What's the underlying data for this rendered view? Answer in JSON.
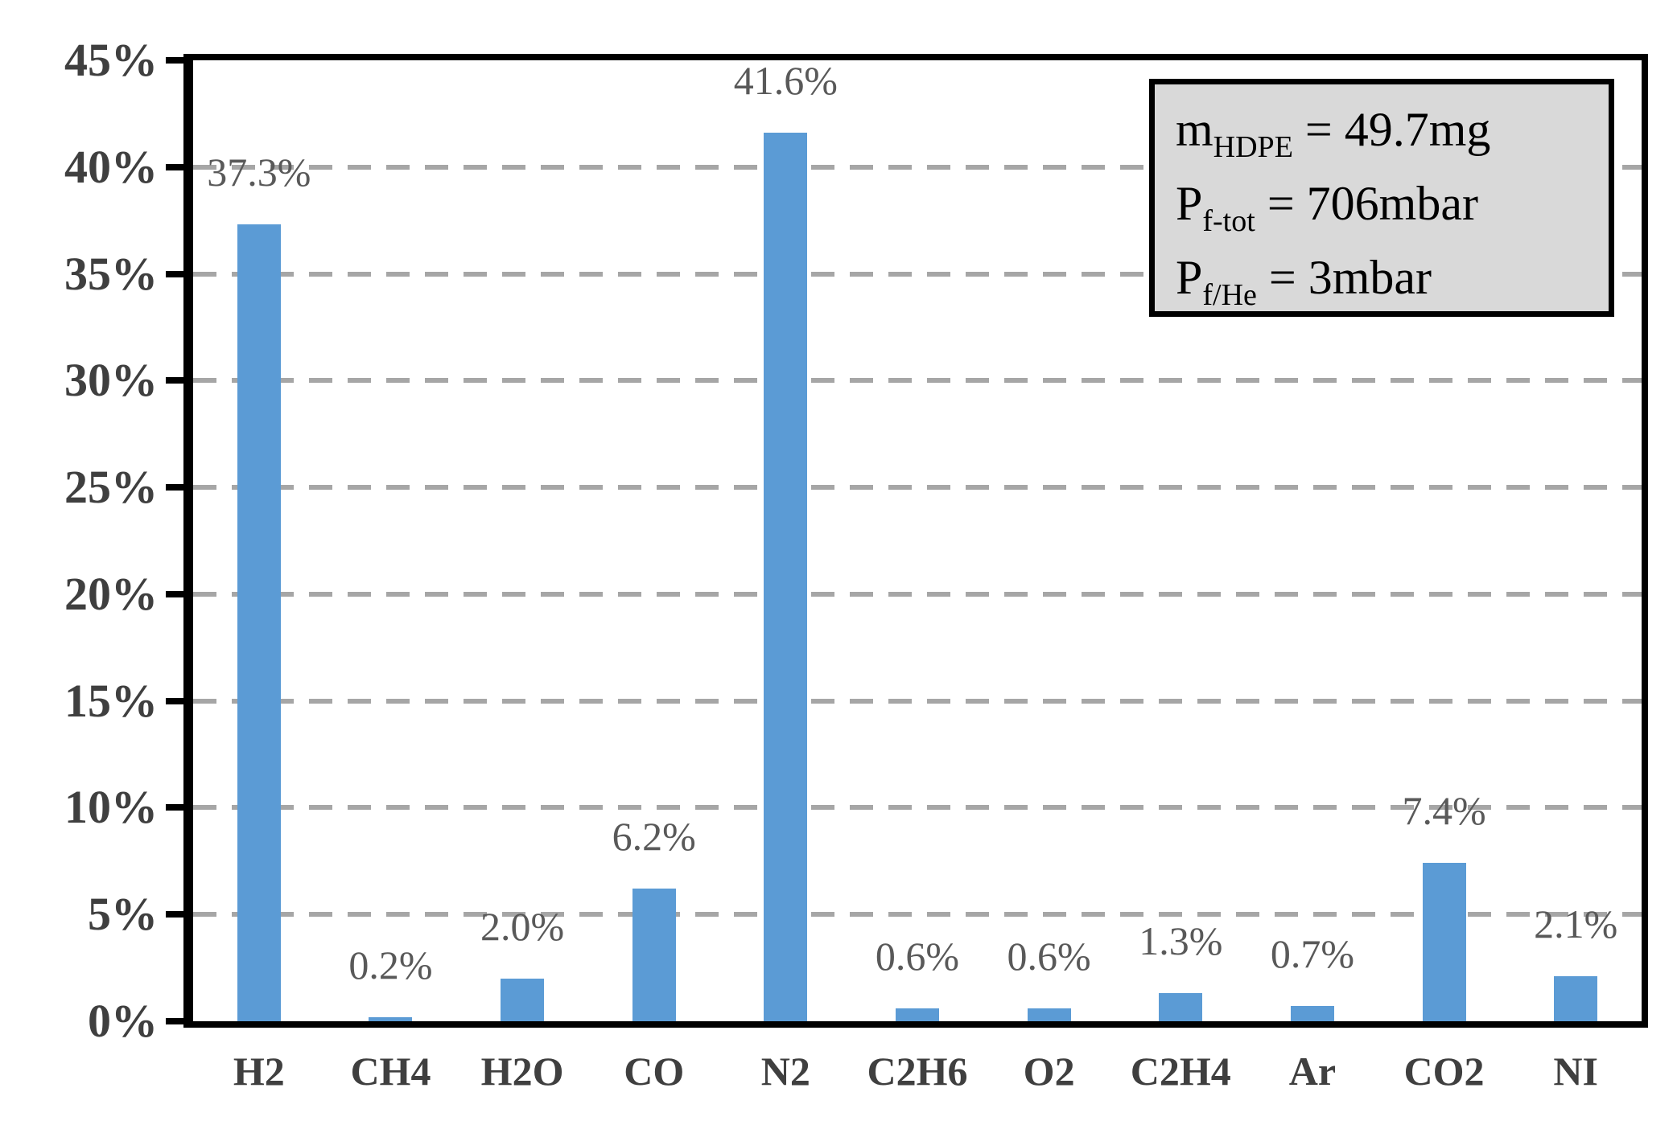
{
  "chart_data": {
    "type": "bar",
    "title": "",
    "xlabel": "",
    "ylabel": "",
    "categories": [
      "H2",
      "CH4",
      "H2O",
      "CO",
      "N2",
      "C2H6",
      "O2",
      "C2H4",
      "Ar",
      "CO2",
      "NI"
    ],
    "values": [
      37.3,
      0.2,
      2.0,
      6.2,
      41.6,
      0.6,
      0.6,
      1.3,
      0.7,
      7.4,
      2.1
    ],
    "data_labels": [
      "37.3%",
      "0.2%",
      "2.0%",
      "6.2%",
      "41.6%",
      "0.6%",
      "0.6%",
      "1.3%",
      "0.7%",
      "7.4%",
      "2.1%"
    ],
    "ylim": [
      0,
      45
    ],
    "ytick_step": 5,
    "ytick_labels": [
      "0%",
      "5%",
      "10%",
      "15%",
      "20%",
      "25%",
      "30%",
      "35%",
      "40%",
      "45%"
    ],
    "grid": "horizontal dashed lines every 5%, 45% line is solid top border",
    "legend_position": "none",
    "bar_color": "#5b9bd5",
    "gridline_color": "#a6a6a6",
    "axis_color": "#000000",
    "axis_label_color": "#3f3f3f",
    "data_label_color": "#595959",
    "annotation_box": {
      "fill": "#d9d9d9",
      "border_color": "#000000",
      "lines": [
        {
          "base": "m",
          "sub": "HDPE",
          "rest": " = 49.7mg"
        },
        {
          "base": "P",
          "sub": "f-tot",
          "rest": " = 706mbar"
        },
        {
          "base": "P",
          "sub": "f/He",
          "rest": " = 3mbar"
        }
      ]
    }
  }
}
